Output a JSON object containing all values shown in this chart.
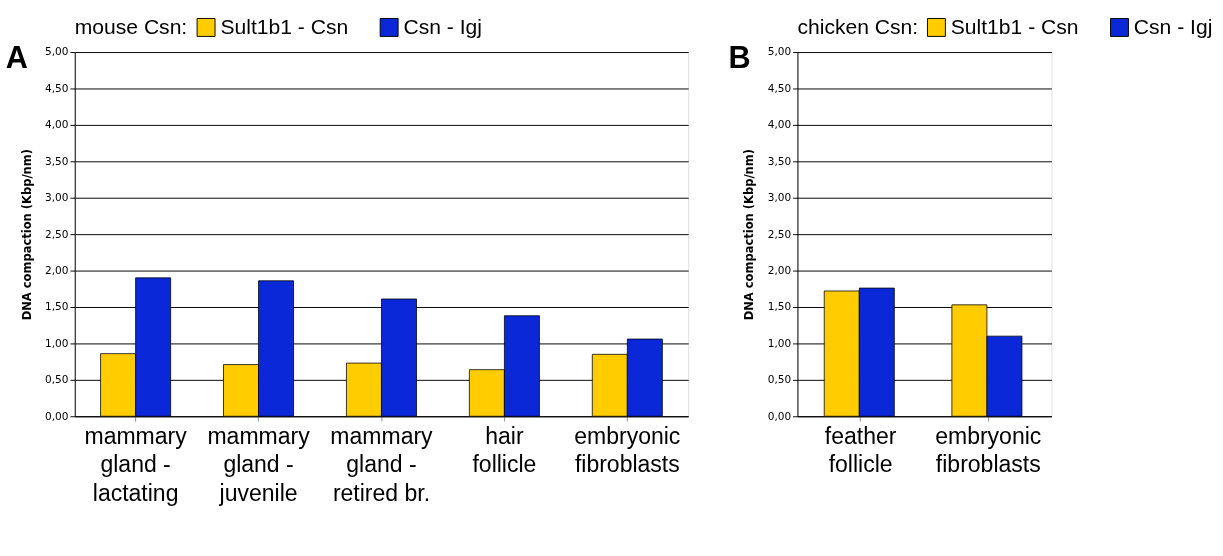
{
  "chart_data": [
    {
      "type": "bar",
      "legend_title": "mouse Csn:",
      "ylabel": "DNA compaction (Kbp/nm)",
      "annotations": [
        "A"
      ],
      "categories": [
        "mammary\ngland -\nlactating",
        "mammary\ngland -\njuvenile",
        "mammary\ngland -\nretired br.",
        "hair\nfollicle",
        "embryonic\nfibroblasts"
      ],
      "series": [
        {
          "name": "Sult1b1 - Csn",
          "color": "#ffcc00",
          "values": [
            0.86,
            0.71,
            0.73,
            0.64,
            0.85
          ]
        },
        {
          "name": "Csn - Igj",
          "color": "#0a28d8",
          "values": [
            1.9,
            1.86,
            1.61,
            1.38,
            1.06
          ]
        }
      ],
      "ylim": [
        0,
        5
      ],
      "yticks": [
        {
          "value": 0,
          "label": "0,00"
        },
        {
          "value": 0.5,
          "label": "0,50"
        },
        {
          "value": 1,
          "label": "1,00"
        },
        {
          "value": 1.5,
          "label": "1,50"
        },
        {
          "value": 2,
          "label": "2,00"
        },
        {
          "value": 2.5,
          "label": "2,50"
        },
        {
          "value": 3,
          "label": "3,00"
        },
        {
          "value": 3.5,
          "label": "3,50"
        },
        {
          "value": 4,
          "label": "4,00"
        },
        {
          "value": 4.5,
          "label": "4,50"
        },
        {
          "value": 5,
          "label": "5,00"
        }
      ],
      "grid": "y",
      "legend": "top"
    },
    {
      "type": "bar",
      "legend_title": "chicken Csn:",
      "ylabel": "DNA compaction (Kbp/nm)",
      "annotations": [
        "B"
      ],
      "categories": [
        "feather\nfollicle",
        "embryonic\nfibroblasts"
      ],
      "series": [
        {
          "name": "Sult1b1 - Csn",
          "color": "#ffcc00",
          "values": [
            1.72,
            1.53
          ]
        },
        {
          "name": "Csn - Igj",
          "color": "#0a28d8",
          "values": [
            1.76,
            1.1
          ]
        }
      ],
      "ylim": [
        0,
        5
      ],
      "yticks": [
        {
          "value": 0,
          "label": "0,00"
        },
        {
          "value": 0.5,
          "label": "0,50"
        },
        {
          "value": 1,
          "label": "1,00"
        },
        {
          "value": 1.5,
          "label": "1,50"
        },
        {
          "value": 2,
          "label": "2,00"
        },
        {
          "value": 2.5,
          "label": "2,50"
        },
        {
          "value": 3,
          "label": "3,00"
        },
        {
          "value": 3.5,
          "label": "3,50"
        },
        {
          "value": 4,
          "label": "4,00"
        },
        {
          "value": 4.5,
          "label": "4,50"
        },
        {
          "value": 5,
          "label": "5,00"
        }
      ],
      "grid": "y",
      "legend": "top"
    }
  ]
}
